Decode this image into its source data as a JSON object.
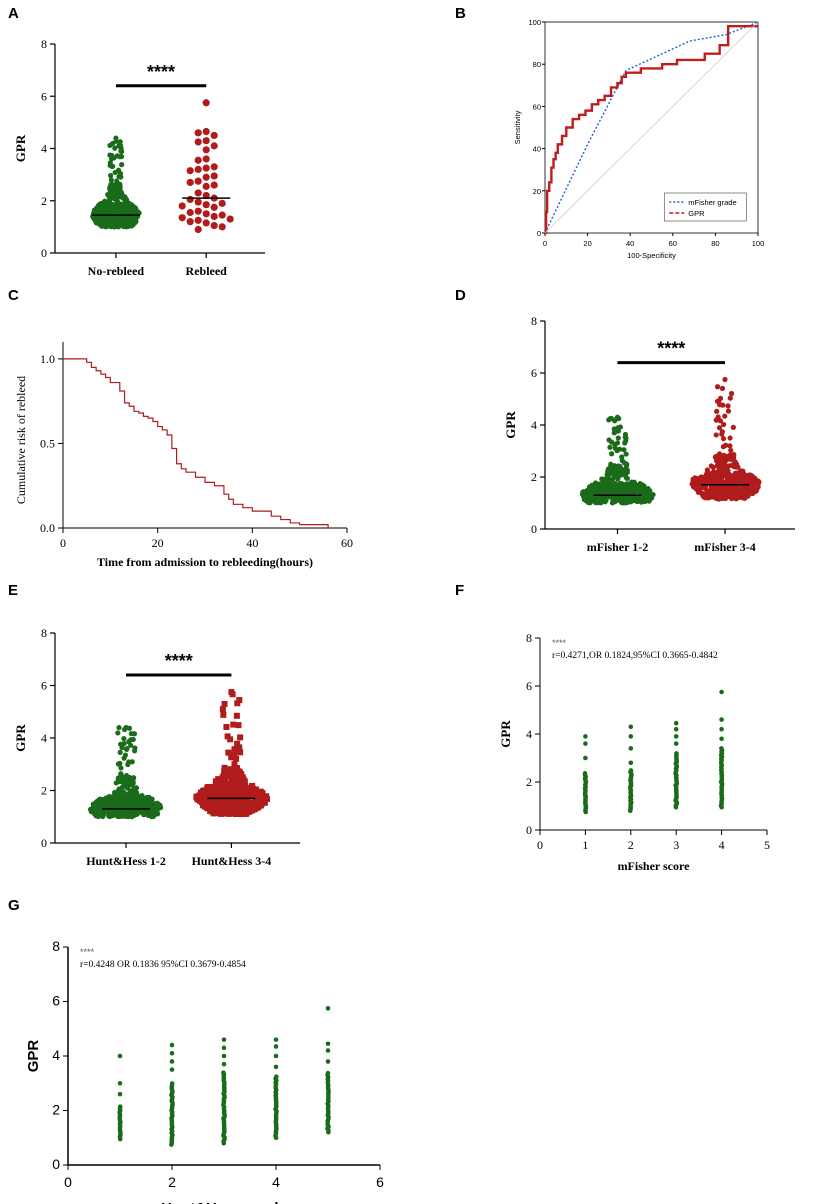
{
  "panels": {
    "A": {
      "label": "A"
    },
    "B": {
      "label": "B"
    },
    "C": {
      "label": "C"
    },
    "D": {
      "label": "D"
    },
    "E": {
      "label": "E"
    },
    "F": {
      "label": "F"
    },
    "G": {
      "label": "G"
    }
  },
  "chart_data": [
    {
      "id": "A",
      "type": "scatter",
      "subtype": "beeswarm",
      "ylabel": "GPR",
      "ylim": [
        0,
        8
      ],
      "yticks": [
        0,
        2,
        4,
        6,
        8
      ],
      "categories": [
        "No-rebleed",
        "Rebleed"
      ],
      "significance": "****",
      "groups": [
        {
          "name": "No-rebleed",
          "color": "#1a6b1a",
          "median": 1.45,
          "min": 0.75,
          "max": 4.4,
          "n_approx": 400
        },
        {
          "name": "Rebleed",
          "color": "#b01c1c",
          "median": 2.1,
          "min": 0.9,
          "max": 5.75,
          "points": [
            5.75,
            4.65,
            4.6,
            4.5,
            4.3,
            4.25,
            4.1,
            3.95,
            3.6,
            3.55,
            3.3,
            3.25,
            3.2,
            3.15,
            2.95,
            2.9,
            2.75,
            2.7,
            2.6,
            2.55,
            2.3,
            2.2,
            2.1,
            2.05,
            1.95,
            1.9,
            1.85,
            1.8,
            1.75,
            1.6,
            1.55,
            1.5,
            1.45,
            1.4,
            1.35,
            1.3,
            1.25,
            1.2,
            1.15,
            1.05,
            1.0,
            0.9
          ]
        }
      ]
    },
    {
      "id": "B",
      "type": "line",
      "subtype": "roc",
      "xlabel": "100-Specificity",
      "ylabel": "Sensitivity",
      "xlim": [
        0,
        100
      ],
      "ylim": [
        0,
        100
      ],
      "xticks": [
        0,
        20,
        40,
        60,
        80,
        100
      ],
      "yticks": [
        0,
        20,
        40,
        60,
        80,
        100
      ],
      "legend": [
        "mFisher grade",
        "GPR"
      ],
      "legend_position": "bottom-right",
      "series": [
        {
          "name": "mFisher grade",
          "color": "#1f5fd6",
          "style": "dotted",
          "x": [
            0,
            20,
            38,
            68,
            85,
            100
          ],
          "y": [
            0,
            42,
            77,
            91,
            94,
            100
          ]
        },
        {
          "name": "GPR",
          "color": "#c01c1c",
          "style": "step",
          "x": [
            0,
            0.5,
            0.5,
            1,
            1,
            2,
            2,
            3,
            3,
            4,
            4,
            5,
            5,
            6,
            6,
            8,
            8,
            10,
            10,
            13,
            13,
            16,
            16,
            19,
            19,
            22,
            22,
            25,
            25,
            28,
            28,
            31,
            31,
            34,
            34,
            36,
            36,
            38,
            38,
            45,
            45,
            55,
            55,
            62,
            62,
            75,
            75,
            82,
            82,
            86,
            86,
            100
          ],
          "y": [
            0,
            0,
            10,
            10,
            20,
            20,
            24,
            24,
            31,
            31,
            35,
            35,
            38,
            38,
            42,
            42,
            46,
            46,
            50,
            50,
            54,
            54,
            56,
            56,
            58,
            58,
            61,
            61,
            63,
            63,
            65,
            65,
            69,
            69,
            71,
            71,
            74,
            74,
            76,
            76,
            78,
            78,
            80,
            80,
            82,
            82,
            85,
            85,
            89,
            89,
            98,
            98
          ]
        },
        {
          "name": "reference",
          "color": "#cccccc",
          "style": "solid",
          "x": [
            0,
            100
          ],
          "y": [
            0,
            100
          ]
        }
      ]
    },
    {
      "id": "C",
      "type": "line",
      "subtype": "step",
      "xlabel": "Time from admission to rebleeding(hours)",
      "ylabel": "Cumulative risk of rebleed",
      "xlim": [
        0,
        60
      ],
      "ylim": [
        0,
        1.0
      ],
      "xticks": [
        0,
        20,
        40,
        60
      ],
      "yticks": [
        0.0,
        0.5,
        1.0
      ],
      "ytick_labels": [
        "0.0",
        "0.5",
        "1.0"
      ],
      "series": [
        {
          "name": "cumulative risk",
          "color": "#b01c1c",
          "x": [
            0,
            5,
            6,
            7,
            8,
            9,
            10,
            12,
            13,
            14,
            15,
            16,
            17,
            18,
            19,
            20,
            21,
            22,
            23,
            24,
            25,
            26,
            28,
            30,
            32,
            34,
            35,
            36,
            38,
            40,
            44,
            46,
            48,
            50,
            56
          ],
          "y": [
            1.0,
            0.98,
            0.95,
            0.93,
            0.91,
            0.89,
            0.86,
            0.81,
            0.74,
            0.72,
            0.69,
            0.68,
            0.66,
            0.65,
            0.63,
            0.6,
            0.58,
            0.55,
            0.47,
            0.38,
            0.35,
            0.33,
            0.3,
            0.27,
            0.25,
            0.2,
            0.17,
            0.14,
            0.12,
            0.1,
            0.07,
            0.05,
            0.03,
            0.02,
            0.0
          ]
        }
      ]
    },
    {
      "id": "D",
      "type": "scatter",
      "subtype": "beeswarm",
      "ylabel": "GPR",
      "ylim": [
        0,
        8
      ],
      "yticks": [
        0,
        2,
        4,
        6,
        8
      ],
      "categories": [
        "mFisher 1-2",
        "mFisher 3-4"
      ],
      "significance": "****",
      "groups": [
        {
          "name": "mFisher 1-2",
          "color": "#1a6b1a",
          "median": 1.3,
          "min": 0.75,
          "max": 4.3
        },
        {
          "name": "mFisher 3-4",
          "color": "#b01c1c",
          "median": 1.7,
          "min": 0.9,
          "max": 5.75
        }
      ]
    },
    {
      "id": "E",
      "type": "scatter",
      "subtype": "beeswarm",
      "ylabel": "GPR",
      "ylim": [
        0,
        8
      ],
      "yticks": [
        0,
        2,
        4,
        6,
        8
      ],
      "categories": [
        "Hunt&Hess 1-2",
        "Hunt&Hess 3-4"
      ],
      "significance": "****",
      "groups": [
        {
          "name": "Hunt&Hess 1-2",
          "color": "#1a6b1a",
          "median": 1.3,
          "min": 0.75,
          "max": 4.4
        },
        {
          "name": "Hunt&Hess 3-4",
          "color": "#b01c1c",
          "median": 1.7,
          "min": 0.85,
          "max": 5.75
        }
      ]
    },
    {
      "id": "F",
      "type": "scatter",
      "xlabel": "mFisher score",
      "ylabel": "GPR",
      "xlim": [
        0,
        5
      ],
      "ylim": [
        0,
        8
      ],
      "xticks": [
        0,
        1,
        2,
        3,
        4,
        5
      ],
      "yticks": [
        0,
        2,
        4,
        6,
        8
      ],
      "annotation_stars": "****",
      "annotation": "r=0.4271,OR 0.1824,95%CI 0.3665-0.4842",
      "columns": [
        {
          "x": 1,
          "min": 0.75,
          "max": 2.4,
          "outliers": [
            3.0,
            3.6,
            3.9
          ]
        },
        {
          "x": 2,
          "min": 0.8,
          "max": 2.5,
          "outliers": [
            2.8,
            3.4,
            3.9,
            4.3
          ]
        },
        {
          "x": 3,
          "min": 0.95,
          "max": 3.2,
          "outliers": [
            3.6,
            3.9,
            4.2,
            4.45
          ]
        },
        {
          "x": 4,
          "min": 0.95,
          "max": 3.4,
          "outliers": [
            3.8,
            4.2,
            4.6,
            5.75
          ]
        }
      ]
    },
    {
      "id": "G",
      "type": "scatter",
      "xlabel": "Hunt&Hess grade",
      "ylabel": "GPR",
      "xlim": [
        0,
        6
      ],
      "ylim": [
        0,
        8
      ],
      "xticks": [
        0,
        2,
        4,
        6
      ],
      "yticks": [
        0,
        2,
        4,
        6,
        8
      ],
      "annotation_stars": "****",
      "annotation": "r=0.4248 OR 0.1836 95%CI 0.3679-0.4854",
      "columns": [
        {
          "x": 1,
          "min": 0.95,
          "max": 2.2,
          "outliers": [
            2.6,
            3.0,
            4.0
          ]
        },
        {
          "x": 2,
          "min": 0.75,
          "max": 3.0,
          "outliers": [
            3.5,
            3.8,
            4.1,
            4.4
          ]
        },
        {
          "x": 3,
          "min": 0.8,
          "max": 3.4,
          "outliers": [
            3.7,
            4.0,
            4.3,
            4.6
          ]
        },
        {
          "x": 4,
          "min": 1.0,
          "max": 3.3,
          "outliers": [
            3.6,
            4.0,
            4.35,
            4.6
          ]
        },
        {
          "x": 5,
          "min": 1.2,
          "max": 3.4,
          "outliers": [
            3.8,
            4.2,
            4.45,
            5.75
          ]
        }
      ]
    }
  ]
}
